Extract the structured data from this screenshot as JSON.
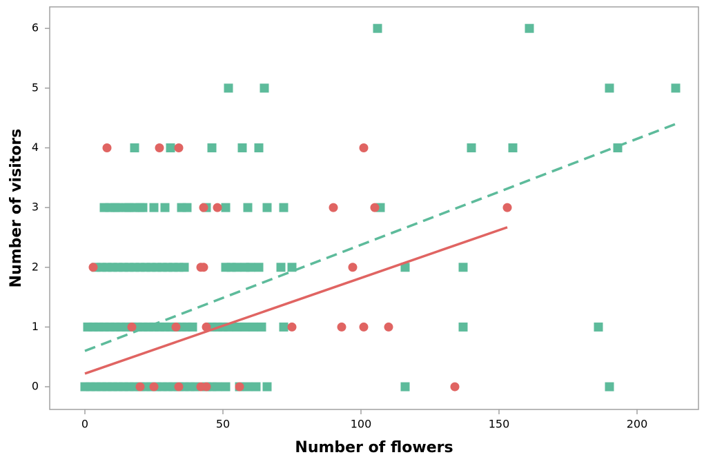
{
  "chart_data": {
    "type": "scatter",
    "x_label": "Number of flowers",
    "y_label": "Number of visitors",
    "xlim": [
      -12.75,
      222.25
    ],
    "ylim": [
      -0.38,
      6.36
    ],
    "xticks": [
      0,
      50,
      100,
      150,
      200
    ],
    "yticks": [
      0,
      1,
      2,
      3,
      4,
      5,
      6
    ],
    "grid": false,
    "series": [
      {
        "color": "#5dbb9b",
        "marker": "square",
        "x": [
          0,
          2,
          4,
          6,
          8,
          10,
          12,
          14,
          16,
          18,
          20,
          22,
          24,
          26,
          28,
          30,
          32,
          34,
          36,
          38,
          40,
          44,
          46,
          48,
          51,
          56,
          59,
          62,
          66,
          116,
          190,
          1,
          3,
          5,
          7,
          9,
          11,
          13,
          15,
          17,
          19,
          21,
          23,
          25,
          27,
          29,
          31,
          33,
          35,
          37,
          39,
          46,
          48,
          50,
          52,
          55,
          58,
          61,
          64,
          72,
          137,
          186,
          4,
          6,
          8,
          10,
          12,
          14,
          16,
          18,
          20,
          22,
          24,
          26,
          28,
          30,
          32,
          34,
          36,
          51,
          53,
          55,
          58,
          60,
          63,
          71,
          75,
          116,
          137,
          7,
          9,
          11,
          12,
          15,
          16,
          18,
          20,
          21,
          25,
          29,
          35,
          37,
          44,
          51,
          59,
          66,
          72,
          107,
          18,
          31,
          46,
          57,
          63,
          140,
          155,
          193,
          52,
          65,
          190,
          214,
          106,
          161
        ],
        "values": [
          0,
          0,
          0,
          0,
          0,
          0,
          0,
          0,
          0,
          0,
          0,
          0,
          0,
          0,
          0,
          0,
          0,
          0,
          0,
          0,
          0,
          0,
          0,
          0,
          0,
          0,
          0,
          0,
          0,
          0,
          0,
          1,
          1,
          1,
          1,
          1,
          1,
          1,
          1,
          1,
          1,
          1,
          1,
          1,
          1,
          1,
          1,
          1,
          1,
          1,
          1,
          1,
          1,
          1,
          1,
          1,
          1,
          1,
          1,
          1,
          1,
          1,
          2,
          2,
          2,
          2,
          2,
          2,
          2,
          2,
          2,
          2,
          2,
          2,
          2,
          2,
          2,
          2,
          2,
          2,
          2,
          2,
          2,
          2,
          2,
          2,
          2,
          2,
          2,
          3,
          3,
          3,
          3,
          3,
          3,
          3,
          3,
          3,
          3,
          3,
          3,
          3,
          3,
          3,
          3,
          3,
          3,
          3,
          4,
          4,
          4,
          4,
          4,
          4,
          4,
          4,
          5,
          5,
          5,
          5,
          6,
          6
        ]
      },
      {
        "color": "#e06462",
        "marker": "circle",
        "x": [
          8,
          27,
          34,
          101,
          43,
          48,
          90,
          105,
          153,
          3,
          42,
          43,
          97,
          17,
          33,
          44,
          75,
          93,
          101,
          110,
          20,
          25,
          34,
          42,
          44,
          56,
          134
        ],
        "values": [
          4,
          4,
          4,
          4,
          3,
          3,
          3,
          3,
          3,
          2,
          2,
          2,
          2,
          1,
          1,
          1,
          1,
          1,
          1,
          1,
          0,
          0,
          0,
          0,
          0,
          0,
          0
        ]
      }
    ],
    "fits": [
      {
        "color": "#e06462",
        "dashed": false,
        "x": [
          0,
          153
        ],
        "values": [
          0.22,
          2.67
        ]
      },
      {
        "color": "#5dbb9b",
        "dashed": true,
        "x": [
          0,
          214
        ],
        "values": [
          0.6,
          4.4
        ]
      }
    ]
  }
}
